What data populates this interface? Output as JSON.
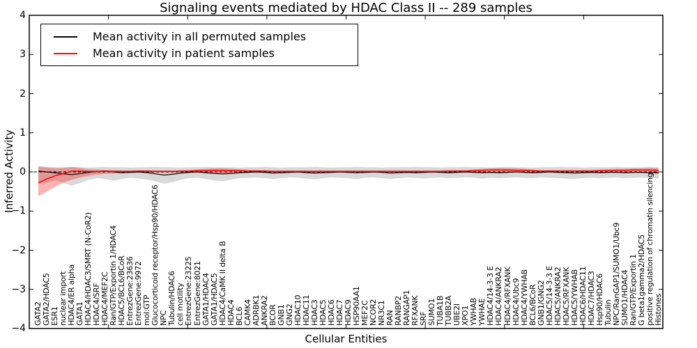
{
  "chart_data": {
    "type": "line",
    "title": "Signaling events mediated by HDAC Class II -- 289 samples",
    "xlabel": "Cellular Entities",
    "ylabel": "Inferred Activity",
    "ylim": [
      -4,
      4
    ],
    "xlim": [
      0,
      80
    ],
    "yticks": [
      4,
      3,
      2,
      1,
      0,
      -1,
      -2,
      -3,
      -4
    ],
    "ytick_labels": [
      "4",
      "3",
      "2",
      "1",
      "0",
      "−1",
      "−2",
      "−3",
      "−4"
    ],
    "xtick_positions": [
      10,
      20,
      30,
      40,
      50,
      60,
      70
    ],
    "grid": false,
    "legend": {
      "position": "upper left",
      "entries": [
        {
          "label": "Mean activity in all permuted samples",
          "color": "#000000"
        },
        {
          "label": "Mean activity in patient samples",
          "color": "#ff0000"
        }
      ]
    },
    "zero_line": {
      "y": 0,
      "style": "dashed",
      "color": "#000000"
    },
    "categories": [
      "GATA2",
      "GATA2/HDAC5",
      "ESR1",
      "nuclear import",
      "HDAC4/ER alpha",
      "GATA1",
      "HDAC4/HDAC3/SMRT (N-CoR2)",
      "HDAC4/SRF",
      "HDAC4/MEF2C",
      "Ran/GTP/Exportin 1/HDAC4",
      "HDAC5/BCL6/BCoR",
      "EntrezGene:23636",
      "EntrezGene:9972",
      "mol:GTP",
      "Glucocorticoid receptor/Hsp90/HDAC6",
      "NPC",
      "Tubulin/HDAC6",
      "cell motility",
      "EntrezGene:23225",
      "EntrezGene:8021",
      "GATA1/HDAC4",
      "GATA1/HDAC5",
      "HDAC4/CaMK II delta B",
      "HDAC4",
      "BCL6",
      "CAMK4",
      "ADRBK1",
      "ANKRA2",
      "BCOR",
      "GNB1",
      "GNG2",
      "HDAC10",
      "HDAC11",
      "HDAC3",
      "HDAC5",
      "HDAC6",
      "HDAC7",
      "HDAC9",
      "HSP90AA1",
      "MEF2C",
      "NCOR2",
      "NR3C1",
      "RAN",
      "RANBP2",
      "RANGAP1",
      "RFXANK",
      "SRF",
      "SUMO1",
      "TUBA1B",
      "TUBB2A",
      "UBE2I",
      "XPO1",
      "YWHAB",
      "YWHAE",
      "HDAC4/14-3-3 E",
      "HDAC4/ANKRA2",
      "HDAC4/RFXANK",
      "HDAC4/Ubc9",
      "HDAC4/YWHAB",
      "BCL6/BCoR",
      "GNB1/GNG2",
      "HDAC5/14-3-3 E",
      "HDAC5/ANKRA2",
      "HDAC5/RFXANK",
      "HDAC5/YWHAB",
      "HDAC6/HDAC11",
      "HDAC7/HDAC3",
      "Hsp90/HDAC6",
      "Tubulin",
      "NPC/RanGAP1/SUMO1/Ubc9",
      "SUMO1/HDAC4",
      "Ran/GTP/Exportin 1",
      "G beta1gamma2/HDAC5",
      "positive regulation of chromatin silencing",
      "Histones"
    ],
    "series": [
      {
        "name": "Mean activity in all permuted samples",
        "color": "#000000",
        "values": [
          0.02,
          0.0,
          -0.02,
          -0.05,
          -0.07,
          -0.04,
          -0.01,
          0.01,
          0.02,
          0.0,
          -0.02,
          -0.01,
          0.0,
          -0.02,
          -0.05,
          -0.08,
          -0.06,
          -0.03,
          -0.01,
          0.0,
          -0.02,
          -0.04,
          -0.05,
          -0.04,
          -0.02,
          -0.01,
          0.0,
          -0.01,
          -0.03,
          -0.02,
          -0.01,
          0.0,
          -0.02,
          -0.03,
          -0.02,
          -0.01,
          0.0,
          -0.01,
          -0.02,
          -0.01,
          0.0,
          -0.01,
          -0.03,
          -0.02,
          -0.01,
          -0.02,
          -0.01,
          0.0,
          -0.01,
          -0.02,
          -0.01,
          0.0,
          -0.01,
          -0.02,
          -0.01,
          -0.02,
          -0.01,
          0.0,
          -0.01,
          -0.02,
          -0.01,
          0.0,
          -0.01,
          -0.02,
          -0.03,
          -0.02,
          -0.01,
          -0.02,
          -0.01,
          -0.01,
          -0.02,
          -0.01,
          -0.01,
          -0.02,
          -0.02
        ]
      },
      {
        "name": "Mean activity in patient samples",
        "color": "#ff0000",
        "values": [
          -0.28,
          -0.18,
          -0.1,
          -0.04,
          0.02,
          0.02,
          0.01,
          0.01,
          0.02,
          0.01,
          0.01,
          0.01,
          0.02,
          0.02,
          0.01,
          0.01,
          0.01,
          0.02,
          0.02,
          0.03,
          0.03,
          0.04,
          0.04,
          0.03,
          0.03,
          0.02,
          0.02,
          0.02,
          0.01,
          0.01,
          0.01,
          0.01,
          0.01,
          0.01,
          0.01,
          0.01,
          0.01,
          0.01,
          0.01,
          0.01,
          0.01,
          0.01,
          0.01,
          0.01,
          0.01,
          0.01,
          0.01,
          0.01,
          0.01,
          0.02,
          0.02,
          0.02,
          0.03,
          0.04,
          0.05,
          0.05,
          0.05,
          0.04,
          0.04,
          0.03,
          0.02,
          0.02,
          0.02,
          0.02,
          0.02,
          0.02,
          0.02,
          0.03,
          0.03,
          0.04,
          0.04,
          0.05,
          0.05,
          0.05,
          0.04
        ]
      }
    ],
    "bands": [
      {
        "name": "permuted samples activity range",
        "color": "#000000",
        "opacity": 0.15,
        "high": [
          0.15,
          0.13,
          0.12,
          0.12,
          0.13,
          0.12,
          0.11,
          0.12,
          0.13,
          0.12,
          0.12,
          0.11,
          0.12,
          0.12,
          0.13,
          0.12,
          0.12,
          0.11,
          0.12,
          0.12,
          0.13,
          0.12,
          0.12,
          0.12,
          0.11,
          0.12,
          0.12,
          0.13,
          0.12,
          0.11,
          0.12,
          0.12,
          0.12,
          0.13,
          0.12,
          0.11,
          0.12,
          0.12,
          0.13,
          0.12,
          0.12,
          0.11,
          0.12,
          0.12,
          0.12,
          0.13,
          0.12,
          0.12,
          0.11,
          0.12,
          0.12,
          0.13,
          0.12,
          0.12,
          0.11,
          0.12,
          0.13,
          0.12,
          0.12,
          0.11,
          0.12,
          0.12,
          0.13,
          0.12,
          0.12,
          0.11,
          0.12,
          0.12,
          0.12,
          0.13,
          0.12,
          0.12,
          0.12,
          0.13,
          0.12
        ],
        "low": [
          -0.3,
          -0.28,
          -0.22,
          -0.28,
          -0.35,
          -0.28,
          -0.2,
          -0.16,
          -0.18,
          -0.22,
          -0.18,
          -0.15,
          -0.17,
          -0.2,
          -0.24,
          -0.3,
          -0.26,
          -0.2,
          -0.16,
          -0.15,
          -0.18,
          -0.22,
          -0.24,
          -0.2,
          -0.16,
          -0.15,
          -0.14,
          -0.16,
          -0.18,
          -0.16,
          -0.14,
          -0.15,
          -0.17,
          -0.19,
          -0.16,
          -0.14,
          -0.15,
          -0.16,
          -0.18,
          -0.15,
          -0.14,
          -0.16,
          -0.18,
          -0.16,
          -0.14,
          -0.15,
          -0.17,
          -0.15,
          -0.14,
          -0.16,
          -0.15,
          -0.14,
          -0.15,
          -0.17,
          -0.15,
          -0.16,
          -0.15,
          -0.14,
          -0.15,
          -0.16,
          -0.14,
          -0.15,
          -0.16,
          -0.17,
          -0.18,
          -0.16,
          -0.15,
          -0.16,
          -0.15,
          -0.14,
          -0.16,
          -0.15,
          -0.14,
          -0.16,
          -0.17
        ]
      },
      {
        "name": "patient samples activity range",
        "color": "#ff0000",
        "opacity": 0.3,
        "high": [
          0.14,
          0.11,
          0.09,
          0.1,
          0.13,
          0.1,
          0.07,
          0.06,
          0.05,
          0.05,
          0.04,
          0.04,
          0.04,
          0.04,
          0.04,
          0.04,
          0.04,
          0.04,
          0.05,
          0.06,
          0.08,
          0.09,
          0.09,
          0.08,
          0.07,
          0.06,
          0.05,
          0.05,
          0.04,
          0.04,
          0.04,
          0.04,
          0.04,
          0.04,
          0.04,
          0.04,
          0.04,
          0.04,
          0.04,
          0.04,
          0.04,
          0.04,
          0.04,
          0.04,
          0.04,
          0.04,
          0.04,
          0.04,
          0.04,
          0.05,
          0.05,
          0.05,
          0.06,
          0.08,
          0.09,
          0.1,
          0.09,
          0.09,
          0.08,
          0.06,
          0.05,
          0.05,
          0.05,
          0.05,
          0.05,
          0.05,
          0.05,
          0.06,
          0.07,
          0.08,
          0.08,
          0.09,
          0.09,
          0.1,
          0.09
        ],
        "low": [
          -0.62,
          -0.5,
          -0.38,
          -0.27,
          -0.2,
          -0.14,
          -0.1,
          -0.07,
          -0.05,
          -0.04,
          -0.03,
          -0.02,
          -0.02,
          -0.02,
          -0.02,
          -0.02,
          -0.02,
          -0.02,
          -0.02,
          -0.02,
          -0.03,
          -0.04,
          -0.04,
          -0.03,
          -0.03,
          -0.02,
          -0.02,
          -0.02,
          -0.02,
          -0.02,
          -0.02,
          -0.02,
          -0.02,
          -0.02,
          -0.02,
          -0.02,
          -0.02,
          -0.02,
          -0.02,
          -0.02,
          -0.02,
          -0.02,
          -0.02,
          -0.02,
          -0.02,
          -0.02,
          -0.02,
          -0.02,
          -0.02,
          -0.02,
          -0.02,
          -0.01,
          -0.01,
          -0.01,
          -0.01,
          -0.01,
          -0.01,
          -0.01,
          -0.01,
          -0.01,
          -0.01,
          -0.01,
          -0.01,
          -0.01,
          -0.01,
          -0.01,
          -0.01,
          -0.01,
          -0.01,
          0.0,
          0.0,
          0.0,
          0.0,
          0.0,
          -0.06
        ]
      }
    ]
  }
}
